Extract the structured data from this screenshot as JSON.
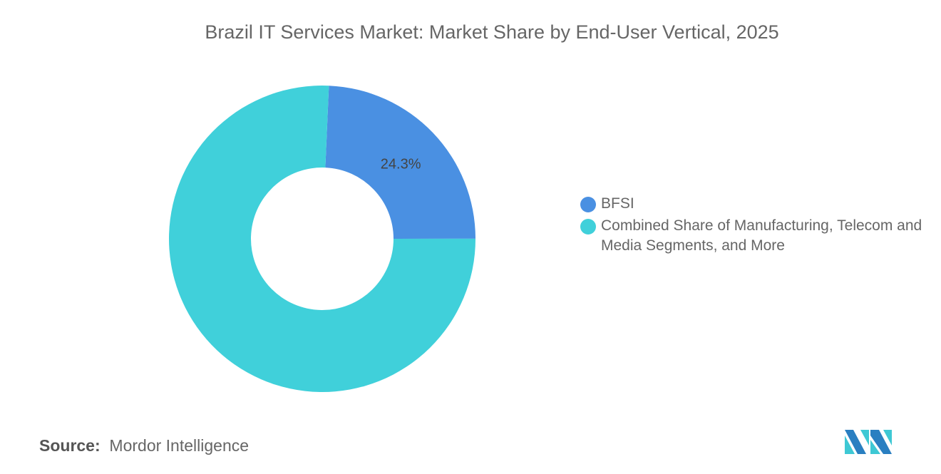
{
  "title": "Brazil IT Services Market: Market Share by End-User Vertical, 2025",
  "chart_data": {
    "type": "pie",
    "donut": true,
    "title": "Brazil IT Services Market: Market Share by End-User Vertical, 2025",
    "categories": [
      "BFSI",
      "Combined Share of Manufacturing, Telecom and Media Segments, and More"
    ],
    "values": [
      24.3,
      75.7
    ],
    "data_labels": [
      "24.3%",
      ""
    ],
    "colors": [
      "#4a90e2",
      "#40d0da"
    ],
    "legend_position": "right"
  },
  "source": {
    "label": "Source:",
    "value": "Mordor Intelligence"
  }
}
